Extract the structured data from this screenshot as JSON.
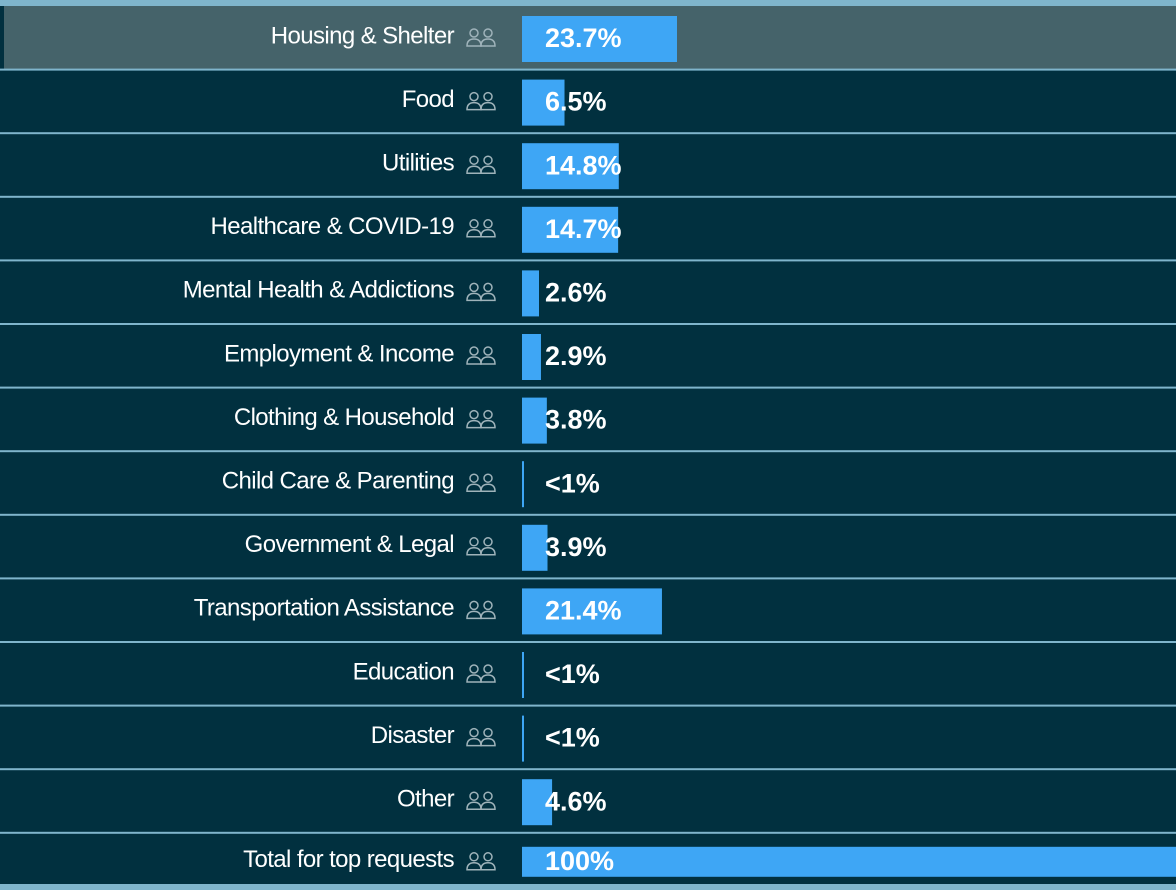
{
  "chart_data": {
    "type": "hbar",
    "categories": [
      "Housing & Shelter",
      "Food",
      "Utilities",
      "Healthcare & COVID-19",
      "Mental Health & Addictions",
      "Employment & Income",
      "Clothing & Household",
      "Child Care & Parenting",
      "Government & Legal",
      "Transportation Assistance",
      "Education",
      "Disaster",
      "Other",
      "Total for top requests"
    ],
    "values": [
      23.7,
      6.5,
      14.8,
      14.7,
      2.6,
      2.9,
      3.8,
      0.3,
      3.9,
      21.4,
      0.3,
      0.3,
      4.6,
      100
    ],
    "value_labels": [
      "23.7%",
      "6.5%",
      "14.8%",
      "14.7%",
      "2.6%",
      "2.9%",
      "3.8%",
      "<1%",
      "3.9%",
      "21.4%",
      "<1%",
      "<1%",
      "4.6%",
      "100%"
    ],
    "color": "#3ea6f5",
    "xlim": [
      0,
      100
    ]
  }
}
